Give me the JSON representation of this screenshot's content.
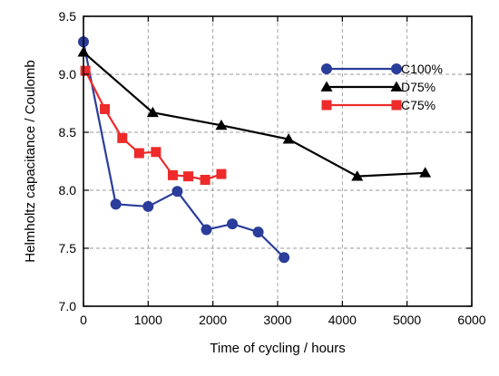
{
  "chart_data": {
    "type": "line",
    "xlabel": "Time of cycling  /  hours",
    "ylabel": "Helmholtz capacitance  /  Coulomb",
    "xlim": [
      0,
      6000
    ],
    "ylim": [
      7.0,
      9.5
    ],
    "xticks": [
      0,
      1000,
      2000,
      3000,
      4000,
      5000,
      6000
    ],
    "yticks": [
      7.0,
      7.5,
      8.0,
      8.5,
      9.0,
      9.5
    ],
    "xtick_labels": [
      "0",
      "1000",
      "2000",
      "3000",
      "4000",
      "5000",
      "6000"
    ],
    "ytick_labels": [
      "7.0",
      "7.5",
      "8.0",
      "8.5",
      "9.0",
      "9.5"
    ],
    "grid": true,
    "legend_position": "top-right",
    "series": [
      {
        "name": "C100%",
        "color": "#2b3d9a",
        "marker": "circle",
        "x": [
          0,
          500,
          1000,
          1450,
          1900,
          2300,
          2700,
          3100
        ],
        "y": [
          9.28,
          7.88,
          7.86,
          7.99,
          7.66,
          7.71,
          7.64,
          7.42
        ]
      },
      {
        "name": "D75%",
        "color": "#000000",
        "marker": "triangle",
        "x": [
          0,
          1070,
          2130,
          3170,
          4230,
          5280
        ],
        "y": [
          9.19,
          8.67,
          8.56,
          8.44,
          8.12,
          8.15
        ]
      },
      {
        "name": "C75%",
        "color": "#ee2a2a",
        "marker": "square",
        "x": [
          30,
          330,
          600,
          860,
          1120,
          1380,
          1620,
          1880,
          2130
        ],
        "y": [
          9.03,
          8.7,
          8.45,
          8.32,
          8.33,
          8.13,
          8.12,
          8.09,
          8.14
        ]
      }
    ]
  }
}
